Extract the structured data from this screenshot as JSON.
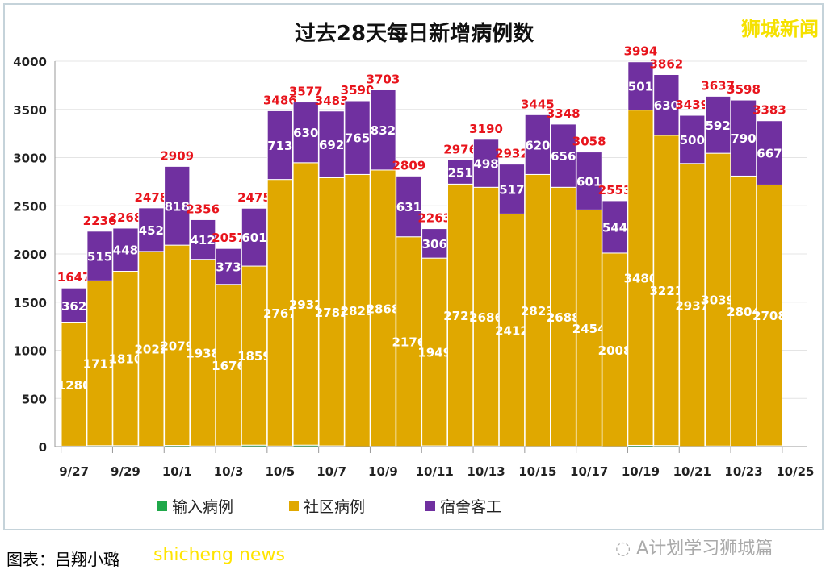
{
  "watermark": "狮城新闻",
  "credit": "图表：吕翔小璐",
  "credit_overlay": "shicheng news",
  "wechat_source": "A计划学习狮城篇",
  "chart_data": {
    "type": "bar",
    "stacked": true,
    "title": "过去28天每日新增病例数",
    "categories": [
      "9/27",
      "9/28",
      "9/29",
      "9/30",
      "10/1",
      "10/2",
      "10/3",
      "10/4",
      "10/5",
      "10/6",
      "10/7",
      "10/8",
      "10/9",
      "10/10",
      "10/11",
      "10/12",
      "10/13",
      "10/14",
      "10/15",
      "10/16",
      "10/17",
      "10/18",
      "10/19",
      "10/20",
      "10/21",
      "10/22",
      "10/23",
      "10/24"
    ],
    "xtick_labels": [
      "9/27",
      "9/29",
      "10/1",
      "10/3",
      "10/5",
      "10/7",
      "10/9",
      "10/11",
      "10/13",
      "10/15",
      "10/17",
      "10/19",
      "10/21",
      "10/23",
      "10/25"
    ],
    "ylim": [
      0,
      4000
    ],
    "yticks": [
      0,
      500,
      1000,
      1500,
      2000,
      2500,
      3000,
      3500,
      4000
    ],
    "grid": true,
    "legend_position": "bottom",
    "series": [
      {
        "name": "输入病例",
        "color": "#1fa84a",
        "values": [
          5,
          10,
          10,
          4,
          12,
          6,
          8,
          15,
          6,
          15,
          8,
          0,
          3,
          2,
          8,
          4,
          6,
          3,
          2,
          4,
          3,
          1,
          13,
          11,
          2,
          6,
          4,
          8
        ]
      },
      {
        "name": "社区病例",
        "color": "#e0a800",
        "values": [
          1280,
          1711,
          1810,
          2022,
          2079,
          1938,
          1676,
          1859,
          2767,
          2932,
          2783,
          2825,
          2868,
          2176,
          1949,
          2721,
          2686,
          2412,
          2823,
          2688,
          2454,
          2008,
          3480,
          3221,
          2937,
          3039,
          2804,
          2708
        ]
      },
      {
        "name": "宿舍客工",
        "color": "#7030a0",
        "values": [
          362,
          515,
          448,
          452,
          818,
          412,
          373,
          601,
          713,
          630,
          692,
          765,
          832,
          631,
          306,
          251,
          498,
          517,
          620,
          656,
          601,
          544,
          501,
          630,
          500,
          592,
          790,
          667
        ]
      }
    ],
    "totals": [
      1647,
      2236,
      2268,
      2478,
      2909,
      2356,
      2057,
      2475,
      3486,
      3577,
      3483,
      3590,
      3703,
      2809,
      2263,
      2976,
      3190,
      2932,
      3445,
      3348,
      3058,
      2553,
      3994,
      3862,
      3439,
      3637,
      3598,
      3383
    ],
    "total_label_color": "#e8141c"
  }
}
